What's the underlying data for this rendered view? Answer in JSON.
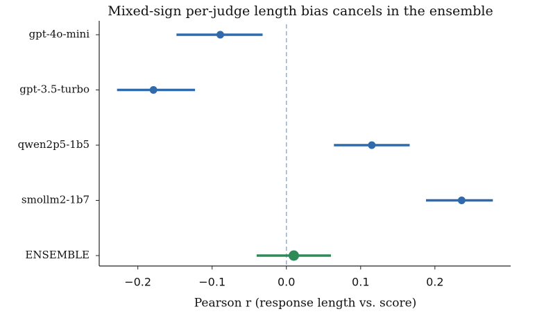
{
  "chart_data": {
    "type": "forest",
    "title": "Mixed-sign per-judge length bias cancels in the ensemble",
    "xlabel": "Pearson r (response length vs. score)",
    "categories": [
      "gpt-4o-mini",
      "gpt-3.5-turbo",
      "qwen2p5-1b5",
      "smollm2-1b7",
      "ENSEMBLE"
    ],
    "values": [
      -0.089,
      -0.179,
      0.115,
      0.236,
      0.01
    ],
    "lower": [
      -0.148,
      -0.228,
      0.064,
      0.188,
      -0.04
    ],
    "upper": [
      -0.032,
      -0.123,
      0.166,
      0.278,
      0.06
    ],
    "colors": [
      "#2f6aad",
      "#2f6aad",
      "#2f6aad",
      "#2f6aad",
      "#2e8b57"
    ],
    "xlim": [
      -0.252,
      0.302
    ],
    "xticks": [
      {
        "value": -0.2,
        "label": "−0.2"
      },
      {
        "value": -0.1,
        "label": "−0.1"
      },
      {
        "value": 0,
        "label": "0.0"
      },
      0.1,
      0.2
    ],
    "reference_line": 0,
    "reference_color": "#9aaec8"
  }
}
